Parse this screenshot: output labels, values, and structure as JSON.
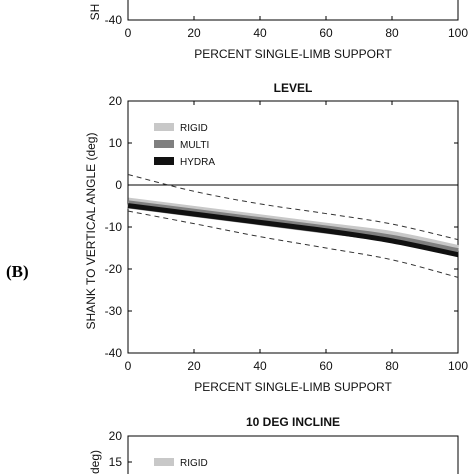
{
  "chart_data": [
    {
      "type": "line",
      "panel": "top (partial)",
      "xlabel": "PERCENT SINGLE-LIMB SUPPORT",
      "ylabel": "SH",
      "xlim": [
        0,
        100
      ],
      "ylim_visible": [
        -40,
        -30
      ],
      "x_ticks": [
        "0",
        "20",
        "40",
        "60",
        "80",
        "100"
      ],
      "y_ticks": [
        "-40"
      ]
    },
    {
      "type": "line",
      "panel_label": "(B)",
      "title": "LEVEL",
      "xlabel": "PERCENT SINGLE-LIMB SUPPORT",
      "ylabel": "SHANK TO VERTICAL ANGLE (deg)",
      "xlim": [
        0,
        100
      ],
      "ylim": [
        -40,
        20
      ],
      "x_ticks": [
        "0",
        "20",
        "40",
        "60",
        "80",
        "100"
      ],
      "y_ticks": [
        "20",
        "10",
        "0",
        "-10",
        "-20",
        "-30",
        "-40"
      ],
      "grid": false,
      "legend_position": "top-left",
      "zero_line": 0,
      "series": [
        {
          "name": "RIGID",
          "color": "#c8c8c8",
          "x": [
            0,
            20,
            40,
            60,
            80,
            100
          ],
          "y": [
            -4.3,
            -6.3,
            -8.3,
            -10.3,
            -12.3,
            -15.6
          ]
        },
        {
          "name": "MULTI",
          "color": "#7f7f7f",
          "x": [
            0,
            20,
            40,
            60,
            80,
            100
          ],
          "y": [
            -4.6,
            -6.6,
            -8.6,
            -10.6,
            -12.8,
            -16.0
          ]
        },
        {
          "name": "HYDRA",
          "color": "#111111",
          "x": [
            0,
            20,
            40,
            60,
            80,
            100
          ],
          "y": [
            -4.9,
            -6.9,
            -8.9,
            -10.9,
            -13.3,
            -16.6
          ]
        }
      ],
      "bands": [
        {
          "x": [
            0,
            20,
            40,
            60,
            80,
            100
          ],
          "y": [
            2.5,
            -1.5,
            -4.5,
            -6.8,
            -9.3,
            -13.0
          ]
        },
        {
          "x": [
            0,
            20,
            40,
            60,
            80,
            100
          ],
          "y": [
            -6.2,
            -9.2,
            -12.3,
            -15.0,
            -17.8,
            -22.0
          ]
        }
      ]
    },
    {
      "type": "line",
      "panel": "bottom (partial)",
      "title": "10 DEG INCLINE",
      "ylabel": "(deg)",
      "y_ticks": [
        "20",
        "15"
      ],
      "legend_position": "top-left",
      "series": [
        {
          "name": "RIGID",
          "color": "#c8c8c8"
        }
      ]
    }
  ]
}
